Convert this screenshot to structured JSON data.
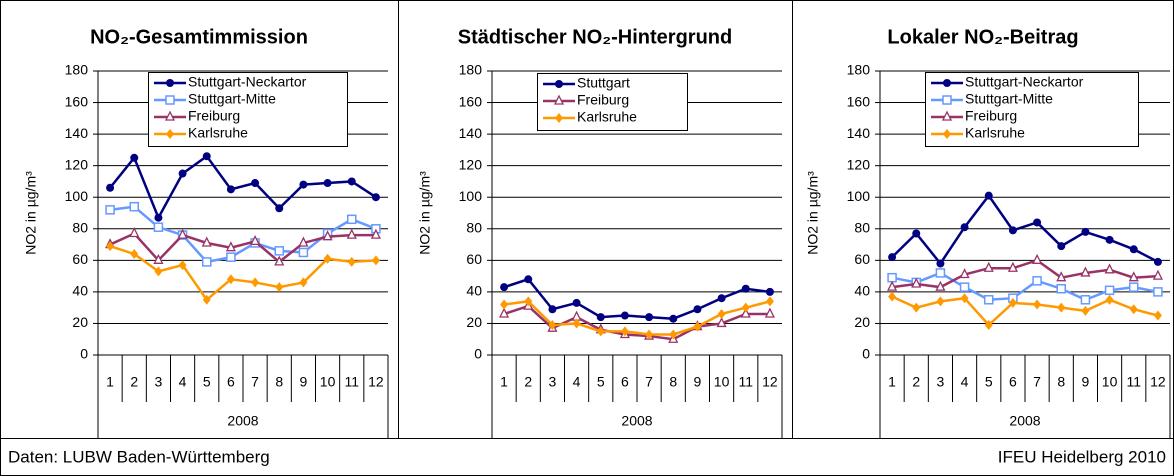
{
  "chart_data": [
    {
      "type": "line",
      "title": "NO₂-Gesamtimmission",
      "ylabel": "NO2 in µg/m³",
      "category_group": "2008",
      "categories": [
        "1",
        "2",
        "3",
        "4",
        "5",
        "6",
        "7",
        "8",
        "9",
        "10",
        "11",
        "12"
      ],
      "ylim": [
        0,
        180
      ],
      "yticks": [
        0,
        20,
        40,
        60,
        80,
        100,
        120,
        140,
        160,
        180
      ],
      "grid": true,
      "series": [
        {
          "name": "Stuttgart-Neckartor",
          "color": "#000080",
          "marker": "circle",
          "values": [
            106,
            125,
            87,
            115,
            126,
            105,
            109,
            93,
            108,
            109,
            110,
            100
          ]
        },
        {
          "name": "Stuttgart-Mitte",
          "color": "#6699ff",
          "marker": "square",
          "values": [
            92,
            94,
            81,
            76,
            59,
            62,
            71,
            66,
            65,
            77,
            86,
            80
          ]
        },
        {
          "name": "Freiburg",
          "color": "#993366",
          "marker": "triangle",
          "values": [
            70,
            77,
            60,
            76,
            71,
            68,
            72,
            59,
            71,
            75,
            76,
            76
          ]
        },
        {
          "name": "Karlsruhe",
          "color": "#ff9900",
          "marker": "diamond",
          "values": [
            69,
            64,
            53,
            57,
            35,
            48,
            46,
            43,
            46,
            61,
            59,
            60
          ]
        }
      ]
    },
    {
      "type": "line",
      "title": "Städtischer NO₂-Hintergrund",
      "ylabel": "NO2 in µg/m³",
      "category_group": "2008",
      "categories": [
        "1",
        "2",
        "3",
        "4",
        "5",
        "6",
        "7",
        "8",
        "9",
        "10",
        "11",
        "12"
      ],
      "ylim": [
        0,
        180
      ],
      "yticks": [
        0,
        20,
        40,
        60,
        80,
        100,
        120,
        140,
        160,
        180
      ],
      "grid": true,
      "series": [
        {
          "name": "Stuttgart",
          "color": "#000080",
          "marker": "circle",
          "values": [
            43,
            48,
            29,
            33,
            24,
            25,
            24,
            23,
            29,
            36,
            42,
            40
          ]
        },
        {
          "name": "Freiburg",
          "color": "#993366",
          "marker": "triangle",
          "values": [
            26,
            31,
            17,
            24,
            16,
            13,
            12,
            10,
            18,
            20,
            26,
            26
          ]
        },
        {
          "name": "Karlsruhe",
          "color": "#ff9900",
          "marker": "diamond",
          "values": [
            32,
            34,
            19,
            20,
            15,
            15,
            13,
            13,
            18,
            26,
            30,
            34
          ]
        }
      ]
    },
    {
      "type": "line",
      "title": "Lokaler NO₂-Beitrag",
      "ylabel": "NO2 in µg/m³",
      "category_group": "2008",
      "categories": [
        "1",
        "2",
        "3",
        "4",
        "5",
        "6",
        "7",
        "8",
        "9",
        "10",
        "11",
        "12"
      ],
      "ylim": [
        0,
        180
      ],
      "yticks": [
        0,
        20,
        40,
        60,
        80,
        100,
        120,
        140,
        160,
        180
      ],
      "grid": true,
      "series": [
        {
          "name": "Stuttgart-Neckartor",
          "color": "#000080",
          "marker": "circle",
          "values": [
            62,
            77,
            58,
            81,
            101,
            79,
            84,
            69,
            78,
            73,
            67,
            59
          ]
        },
        {
          "name": "Stuttgart-Mitte",
          "color": "#6699ff",
          "marker": "square",
          "values": [
            49,
            46,
            52,
            43,
            35,
            36,
            47,
            42,
            35,
            41,
            43,
            40
          ]
        },
        {
          "name": "Freiburg",
          "color": "#993366",
          "marker": "triangle",
          "values": [
            43,
            45,
            43,
            51,
            55,
            55,
            60,
            49,
            52,
            54,
            49,
            50
          ]
        },
        {
          "name": "Karlsruhe",
          "color": "#ff9900",
          "marker": "diamond",
          "values": [
            37,
            30,
            34,
            36,
            19,
            33,
            32,
            30,
            28,
            35,
            29,
            25
          ]
        }
      ]
    }
  ],
  "footer": {
    "source": "Daten: LUBW Baden-Württemberg",
    "credit": "IFEU Heidelberg 2010"
  }
}
